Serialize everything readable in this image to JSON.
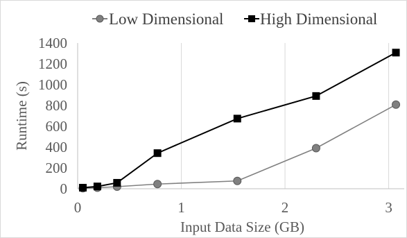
{
  "chart_data": {
    "type": "line",
    "title": "",
    "xlabel": "Input Data Size (GB)",
    "ylabel": "Runtime (s)",
    "xlim": [
      0,
      3.15
    ],
    "ylim": [
      0,
      1400
    ],
    "x_ticks": [
      "0",
      "1",
      "2",
      "3"
    ],
    "y_ticks": [
      "0",
      "200",
      "400",
      "600",
      "800",
      "1000",
      "1200",
      "1400"
    ],
    "grid": "vertical",
    "legend_position": "top",
    "series": [
      {
        "name": "Low Dimensional",
        "color": "#808080",
        "marker": "circle",
        "x": [
          0.05,
          0.19,
          0.38,
          0.77,
          1.54,
          2.3,
          3.07
        ],
        "y": [
          5,
          10,
          20,
          45,
          75,
          390,
          808
        ]
      },
      {
        "name": "High Dimensional",
        "color": "#000000",
        "marker": "square",
        "x": [
          0.05,
          0.19,
          0.38,
          0.77,
          1.54,
          2.3,
          3.07
        ],
        "y": [
          10,
          22,
          57,
          342,
          674,
          891,
          1308
        ]
      }
    ]
  }
}
